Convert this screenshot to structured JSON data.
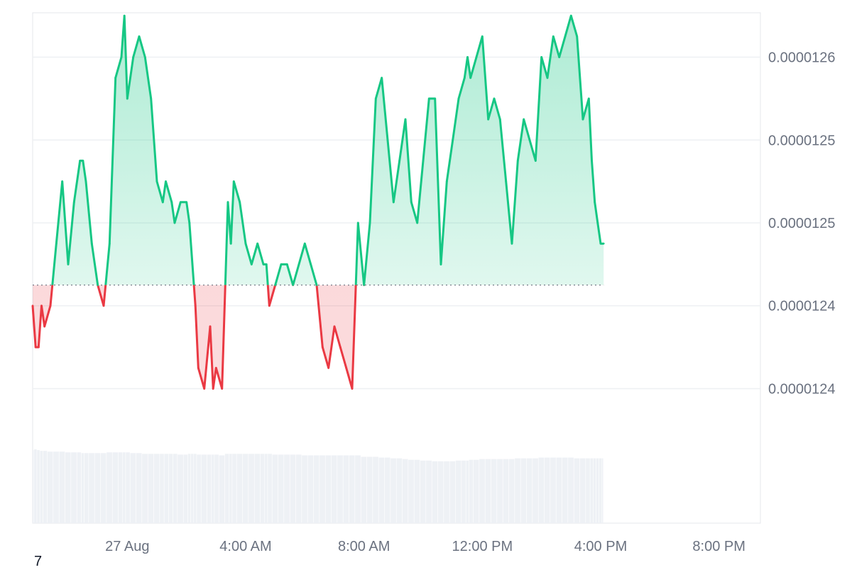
{
  "chart_data": {
    "type": "area",
    "y_ticks": [
      "0.0000124",
      "0.0000124",
      "0.0000125",
      "0.0000125",
      "0.0000126"
    ],
    "y_tick_values": [
      1.238e-05,
      1.242e-05,
      1.246e-05,
      1.25e-05,
      1.254e-05
    ],
    "x_ticks": [
      "27 Aug",
      "4:00 AM",
      "8:00 AM",
      "12:00 PM",
      "4:00 PM",
      "8:00 PM"
    ],
    "x_tick_values": [
      0,
      4,
      8,
      12,
      16,
      20
    ],
    "xlim": [
      -3.2,
      21.4
    ],
    "ylim": [
      1.2362e-05,
      1.2558e-05
    ],
    "baseline": 1.243e-05,
    "grid": true,
    "colors": {
      "up": "#16c784",
      "down": "#ea3943",
      "volume": "#eef1f5",
      "grid": "#eef0f3",
      "baseline": "#6b7280"
    },
    "x": [
      -3.2,
      -3.1,
      -3.0,
      -2.9,
      -2.8,
      -2.6,
      -2.4,
      -2.2,
      -2.0,
      -1.8,
      -1.6,
      -1.5,
      -1.4,
      -1.2,
      -1.0,
      -0.8,
      -0.6,
      -0.4,
      -0.2,
      -0.1,
      0.0,
      0.2,
      0.4,
      0.6,
      0.8,
      1.0,
      1.2,
      1.3,
      1.5,
      1.6,
      1.8,
      2.0,
      2.1,
      2.2,
      2.3,
      2.4,
      2.6,
      2.8,
      2.9,
      3.0,
      3.2,
      3.4,
      3.5,
      3.6,
      3.8,
      4.0,
      4.2,
      4.4,
      4.6,
      4.7,
      4.8,
      5.0,
      5.2,
      5.4,
      5.6,
      5.8,
      6.0,
      6.2,
      6.4,
      6.6,
      6.8,
      7.0,
      7.2,
      7.4,
      7.6,
      7.8,
      8.0,
      8.2,
      8.4,
      8.6,
      8.8,
      9.0,
      9.2,
      9.4,
      9.6,
      9.8,
      10.0,
      10.2,
      10.4,
      10.6,
      10.8,
      11.0,
      11.2,
      11.4,
      11.5,
      11.6,
      11.8,
      12.0,
      12.2,
      12.4,
      12.6,
      12.8,
      13.0,
      13.2,
      13.4,
      13.6,
      13.8,
      14.0,
      14.2,
      14.4,
      14.6,
      14.8,
      15.0,
      15.2,
      15.4,
      15.6,
      15.7,
      15.8,
      15.9,
      16.0,
      16.1
    ],
    "values": [
      1.242e-05,
      1.24e-05,
      1.24e-05,
      1.242e-05,
      1.241e-05,
      1.242e-05,
      1.245e-05,
      1.248e-05,
      1.244e-05,
      1.247e-05,
      1.249e-05,
      1.249e-05,
      1.248e-05,
      1.245e-05,
      1.243e-05,
      1.242e-05,
      1.245e-05,
      1.253e-05,
      1.254e-05,
      1.256e-05,
      1.252e-05,
      1.254e-05,
      1.255e-05,
      1.254e-05,
      1.252e-05,
      1.248e-05,
      1.247e-05,
      1.248e-05,
      1.247e-05,
      1.246e-05,
      1.247e-05,
      1.247e-05,
      1.246e-05,
      1.244e-05,
      1.242e-05,
      1.239e-05,
      1.238e-05,
      1.241e-05,
      1.238e-05,
      1.239e-05,
      1.238e-05,
      1.247e-05,
      1.245e-05,
      1.248e-05,
      1.247e-05,
      1.245e-05,
      1.244e-05,
      1.245e-05,
      1.244e-05,
      1.244e-05,
      1.242e-05,
      1.243e-05,
      1.244e-05,
      1.244e-05,
      1.243e-05,
      1.244e-05,
      1.245e-05,
      1.244e-05,
      1.243e-05,
      1.24e-05,
      1.239e-05,
      1.241e-05,
      1.24e-05,
      1.239e-05,
      1.238e-05,
      1.246e-05,
      1.243e-05,
      1.246e-05,
      1.252e-05,
      1.253e-05,
      1.25e-05,
      1.247e-05,
      1.249e-05,
      1.251e-05,
      1.247e-05,
      1.246e-05,
      1.249e-05,
      1.252e-05,
      1.252e-05,
      1.244e-05,
      1.248e-05,
      1.25e-05,
      1.252e-05,
      1.253e-05,
      1.254e-05,
      1.253e-05,
      1.254e-05,
      1.255e-05,
      1.251e-05,
      1.252e-05,
      1.251e-05,
      1.248e-05,
      1.245e-05,
      1.249e-05,
      1.251e-05,
      1.25e-05,
      1.249e-05,
      1.254e-05,
      1.253e-05,
      1.255e-05,
      1.254e-05,
      1.255e-05,
      1.256e-05,
      1.255e-05,
      1.251e-05,
      1.252e-05,
      1.249e-05,
      1.247e-05,
      1.246e-05,
      1.245e-05,
      1.245e-05
    ],
    "volume": [
      0.98,
      0.99,
      0.98,
      0.97,
      0.97,
      0.96,
      0.96,
      0.96,
      0.95,
      0.95,
      0.95,
      0.94,
      0.94,
      0.94,
      0.94,
      0.94,
      0.95,
      0.95,
      0.95,
      0.95,
      0.95,
      0.94,
      0.94,
      0.93,
      0.93,
      0.93,
      0.93,
      0.93,
      0.93,
      0.93,
      0.92,
      0.92,
      0.93,
      0.93,
      0.93,
      0.92,
      0.92,
      0.92,
      0.92,
      0.92,
      0.91,
      0.93,
      0.93,
      0.93,
      0.93,
      0.93,
      0.93,
      0.93,
      0.93,
      0.93,
      0.93,
      0.92,
      0.92,
      0.92,
      0.92,
      0.92,
      0.91,
      0.91,
      0.91,
      0.91,
      0.91,
      0.91,
      0.91,
      0.91,
      0.91,
      0.91,
      0.89,
      0.89,
      0.89,
      0.88,
      0.88,
      0.87,
      0.87,
      0.86,
      0.85,
      0.85,
      0.84,
      0.84,
      0.83,
      0.83,
      0.83,
      0.83,
      0.84,
      0.84,
      0.84,
      0.85,
      0.85,
      0.86,
      0.86,
      0.86,
      0.86,
      0.86,
      0.86,
      0.87,
      0.87,
      0.87,
      0.87,
      0.88,
      0.88,
      0.88,
      0.88,
      0.88,
      0.88,
      0.87,
      0.87,
      0.87,
      0.87,
      0.87,
      0.87,
      0.87,
      0.87
    ]
  },
  "footnote": "7"
}
